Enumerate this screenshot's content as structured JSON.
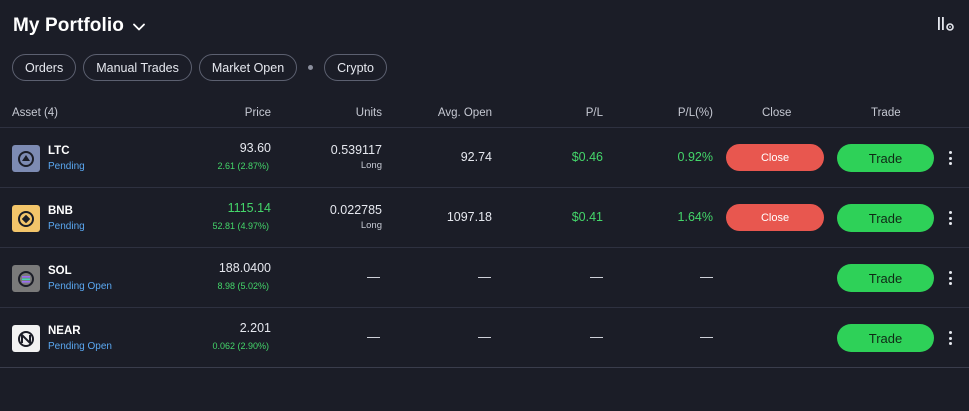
{
  "header": {
    "title": "My Portfolio",
    "chevron_icon": "chevron-down-icon",
    "settings_icon": "columns-settings-icon"
  },
  "filters": {
    "chips": [
      "Orders",
      "Manual Trades",
      "Market Open",
      "Crypto"
    ]
  },
  "table": {
    "columns": {
      "asset": "Asset (4)",
      "price": "Price",
      "units": "Units",
      "avg_open": "Avg. Open",
      "pl": "P/L",
      "pl_pct": "P/L(%)",
      "close": "Close",
      "trade": "Trade"
    },
    "rows": [
      {
        "symbol": "LTC",
        "status": "Pending",
        "price": "93.60",
        "change": "2.61 (2.87%)",
        "units": "0.539117",
        "direction": "Long",
        "avg_open": "92.74",
        "pl": "$0.46",
        "pl_pct": "0.92%",
        "close_label": "Close",
        "trade_label": "Trade",
        "icon": "ltc-icon"
      },
      {
        "symbol": "BNB",
        "status": "Pending",
        "price": "1115.14",
        "change": "52.81 (4.97%)",
        "units": "0.022785",
        "direction": "Long",
        "avg_open": "1097.18",
        "pl": "$0.41",
        "pl_pct": "1.64%",
        "close_label": "Close",
        "trade_label": "Trade",
        "icon": "bnb-icon"
      },
      {
        "symbol": "SOL",
        "status": "Pending Open",
        "price": "188.0400",
        "change": "8.98 (5.02%)",
        "units": "—",
        "avg_open": "—",
        "pl": "—",
        "pl_pct": "—",
        "trade_label": "Trade",
        "icon": "sol-icon"
      },
      {
        "symbol": "NEAR",
        "status": "Pending Open",
        "price": "2.201",
        "change": "0.062 (2.90%)",
        "units": "—",
        "avg_open": "—",
        "pl": "—",
        "pl_pct": "—",
        "trade_label": "Trade",
        "icon": "near-icon"
      }
    ]
  },
  "colors": {
    "background": "#1b1d27",
    "close_button": "#e8574f",
    "trade_button": "#2ed158",
    "positive": "#44d66a",
    "status": "#5aa7f0"
  }
}
